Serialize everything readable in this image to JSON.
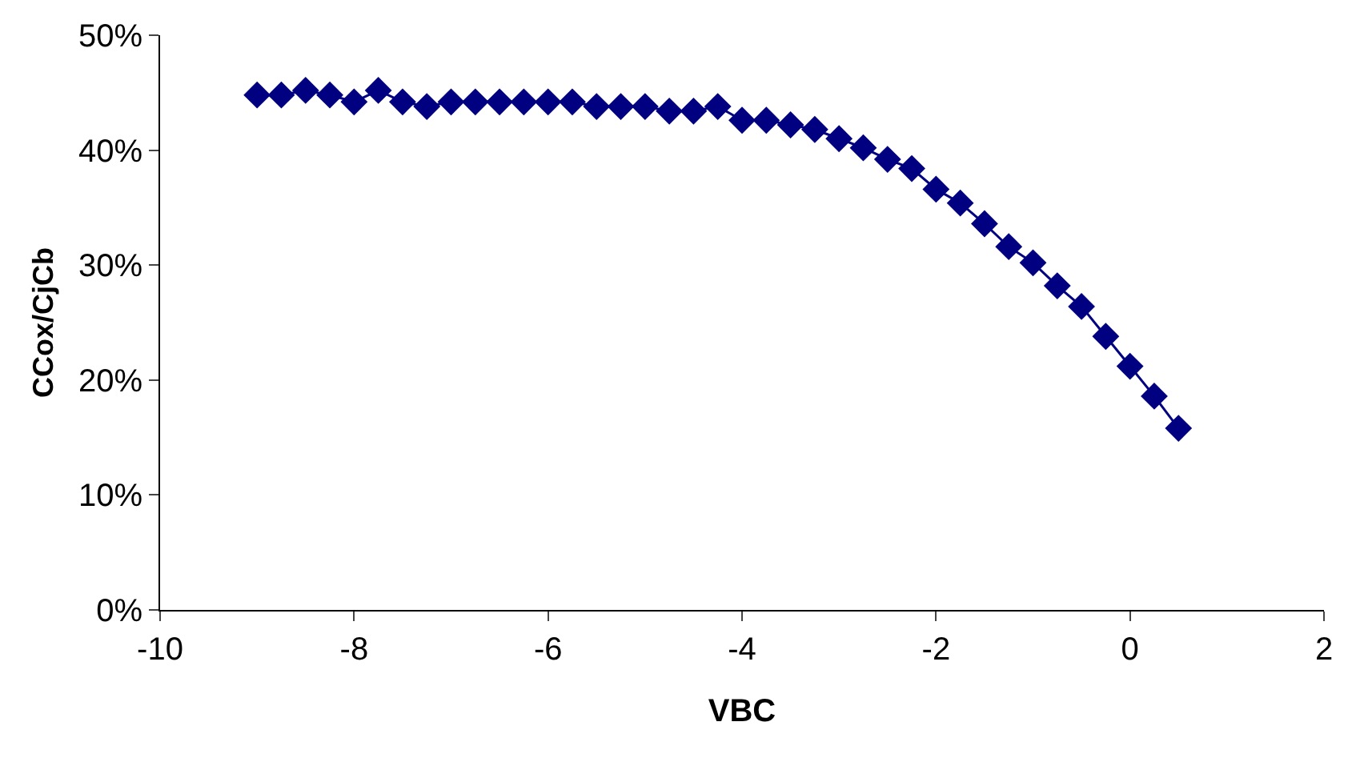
{
  "chart_data": {
    "type": "line",
    "xlabel": "VBC",
    "ylabel": "CCox/CjCb",
    "x": [
      -9,
      -8.75,
      -8.5,
      -8.25,
      -8,
      -7.75,
      -7.5,
      -7.25,
      -7,
      -6.75,
      -6.5,
      -6.25,
      -6,
      -5.75,
      -5.5,
      -5.25,
      -5,
      -4.75,
      -4.5,
      -4.25,
      -4,
      -3.75,
      -3.5,
      -3.25,
      -3,
      -2.75,
      -2.5,
      -2.25,
      -2,
      -1.75,
      -1.5,
      -1.25,
      -1,
      -0.75,
      -0.5,
      -0.25,
      0,
      0.25,
      0.5
    ],
    "series": [
      {
        "color": "#000080",
        "values": [
          44.8,
          44.8,
          45.2,
          44.8,
          44.2,
          45.2,
          44.2,
          43.8,
          44.2,
          44.2,
          44.2,
          44.2,
          44.2,
          44.2,
          43.8,
          43.8,
          43.8,
          43.4,
          43.4,
          43.8,
          42.6,
          42.6,
          42.2,
          41.8,
          41,
          40.2,
          39.2,
          38.4,
          36.6,
          35.4,
          33.6,
          31.6,
          30.2,
          28.2,
          26.4,
          23.8,
          21.2,
          18.6,
          15.8
        ]
      }
    ],
    "xlim": [
      -10,
      2
    ],
    "xticks": [
      -10,
      -8,
      -6,
      -4,
      -2,
      0,
      2
    ],
    "ylim": [
      0,
      50
    ],
    "yticks": [
      {
        "value": 0,
        "label": "0%"
      },
      {
        "value": 10,
        "label": "10%"
      },
      {
        "value": 20,
        "label": "20%"
      },
      {
        "value": 30,
        "label": "30%"
      },
      {
        "value": 40,
        "label": "40%"
      },
      {
        "value": 50,
        "label": "50%"
      }
    ],
    "marker": "diamond",
    "line_style": "solid"
  }
}
